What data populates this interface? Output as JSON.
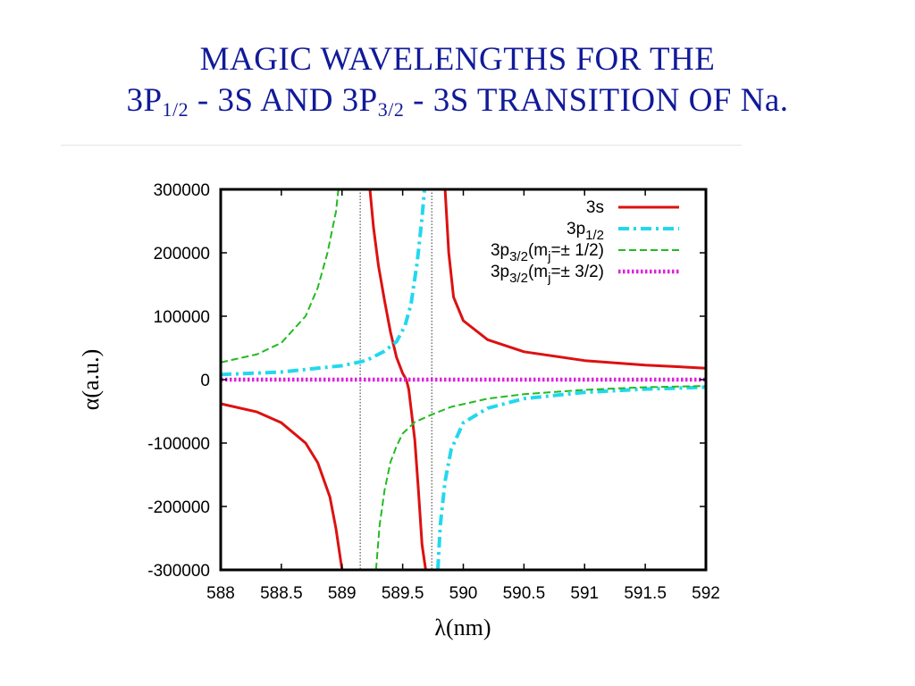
{
  "title": {
    "line1": "Magic wavelengths for the",
    "line2_a": "3p",
    "line2_sub1": "1/2",
    "line2_b": " - 3s and 3p",
    "line2_sub2": "3/2",
    "line2_c": " - 3s transition of ",
    "line2_na": "Na."
  },
  "chart_data": {
    "type": "line",
    "xlabel": "λ(nm)",
    "ylabel": "α(a.u.)",
    "xlim": [
      588,
      592
    ],
    "ylim": [
      -300000,
      300000
    ],
    "x_ticks": [
      "588",
      "588.5",
      "589",
      "589.5",
      "590",
      "590.5",
      "591",
      "591.5",
      "592"
    ],
    "y_ticks": [
      "-300000",
      "-200000",
      "-100000",
      "0",
      "100000",
      "200000",
      "300000"
    ],
    "grid": false,
    "legend_position": "top-right",
    "magic_wavelengths": [
      589.15,
      589.74
    ],
    "series": [
      {
        "name": "3s",
        "legend": {
          "base": "3s",
          "sub": "",
          "suffix": ""
        },
        "color": "#dd1111",
        "style": "solid",
        "segments": [
          [
            [
              588,
              -38000
            ],
            [
              588.3,
              -51000
            ],
            [
              588.5,
              -68000
            ],
            [
              588.7,
              -100000
            ],
            [
              588.8,
              -131000
            ],
            [
              588.9,
              -185000
            ],
            [
              588.95,
              -235000
            ],
            [
              589.0,
              -300000
            ],
            [
              589.05,
              -300000
            ]
          ],
          [
            [
              589.23,
              300000
            ],
            [
              589.26,
              240000
            ],
            [
              589.3,
              180000
            ],
            [
              589.35,
              125000
            ],
            [
              589.4,
              75000
            ],
            [
              589.45,
              35000
            ],
            [
              589.5,
              10000
            ],
            [
              589.53,
              0
            ],
            [
              589.55,
              -15000
            ],
            [
              589.6,
              -95000
            ],
            [
              589.63,
              -175000
            ],
            [
              589.66,
              -260000
            ],
            [
              589.69,
              -300000
            ]
          ],
          [
            [
              589.85,
              300000
            ],
            [
              589.88,
              200000
            ],
            [
              589.92,
              130000
            ],
            [
              590,
              93000
            ],
            [
              590.2,
              63000
            ],
            [
              590.5,
              44000
            ],
            [
              591,
              30000
            ],
            [
              591.5,
              23000
            ],
            [
              592,
              18000
            ]
          ]
        ]
      },
      {
        "name": "3p1/2",
        "legend": {
          "base": "3p",
          "sub": "1/2",
          "suffix": ""
        },
        "color": "#22d8ee",
        "style": "dashdot",
        "segments": [
          [
            [
              588,
              8000
            ],
            [
              588.5,
              12000
            ],
            [
              589,
              22000
            ],
            [
              589.2,
              30000
            ],
            [
              589.35,
              45000
            ],
            [
              589.45,
              60000
            ],
            [
              589.52,
              85000
            ],
            [
              589.57,
              120000
            ],
            [
              589.62,
              185000
            ],
            [
              589.66,
              255000
            ],
            [
              589.68,
              300000
            ]
          ],
          [
            [
              589.79,
              -300000
            ],
            [
              589.81,
              -230000
            ],
            [
              589.85,
              -160000
            ],
            [
              589.9,
              -110000
            ],
            [
              590,
              -68000
            ],
            [
              590.2,
              -45000
            ],
            [
              590.5,
              -30000
            ],
            [
              591,
              -20000
            ],
            [
              591.5,
              -15000
            ],
            [
              592,
              -12000
            ]
          ]
        ]
      },
      {
        "name": "3p3/2(mj=± 1/2)",
        "legend": {
          "base": "3p",
          "sub": "3/2",
          "suffix": "(m",
          "sub2": "j",
          "suffix2": "=± 1/2)"
        },
        "color": "#22bb22",
        "style": "dashed",
        "segments": [
          [
            [
              588,
              27000
            ],
            [
              588.3,
              40000
            ],
            [
              588.5,
              58000
            ],
            [
              588.7,
              100000
            ],
            [
              588.8,
              145000
            ],
            [
              588.88,
              200000
            ],
            [
              588.95,
              265000
            ],
            [
              588.97,
              300000
            ]
          ],
          [
            [
              589.28,
              -300000
            ],
            [
              589.31,
              -230000
            ],
            [
              589.35,
              -175000
            ],
            [
              589.4,
              -130000
            ],
            [
              589.45,
              -105000
            ],
            [
              589.5,
              -85000
            ],
            [
              589.6,
              -67000
            ],
            [
              589.74,
              -55000
            ],
            [
              589.9,
              -43000
            ],
            [
              590.2,
              -30000
            ],
            [
              590.5,
              -23000
            ],
            [
              591,
              -16000
            ],
            [
              591.5,
              -12000
            ],
            [
              592,
              -10000
            ]
          ]
        ]
      },
      {
        "name": "3p3/2(mj=± 3/2)",
        "legend": {
          "base": "3p",
          "sub": "3/2",
          "suffix": "(m",
          "sub2": "j",
          "suffix2": "=± 3/2)"
        },
        "color": "#dd22dd",
        "style": "dotted",
        "segments": [
          [
            [
              588,
              0
            ],
            [
              592,
              0
            ]
          ]
        ]
      }
    ]
  }
}
